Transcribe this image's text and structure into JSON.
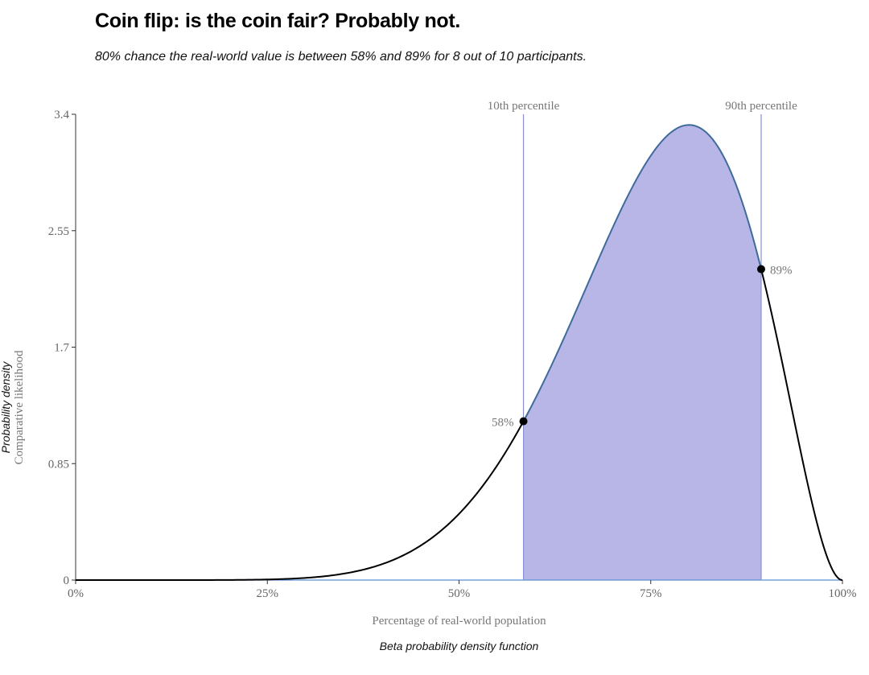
{
  "chart_data": {
    "type": "area",
    "title": "Coin flip: is the coin fair? Probably not.",
    "subtitle": "80% chance the real-world value is between 58% and 89% for 8 out of 10 participants.",
    "distribution": "beta",
    "alpha": 9,
    "beta": 3,
    "xlabel": "Percentage of real-world population",
    "ylabel": "Comparative likelihood",
    "ylabel_secondary": "Probability density",
    "caption": "Beta probability density function",
    "xlim": [
      0,
      1
    ],
    "ylim": [
      0,
      3.4
    ],
    "x_ticks": [
      0,
      0.25,
      0.5,
      0.75,
      1
    ],
    "x_tick_labels": [
      "0%",
      "25%",
      "50%",
      "75%",
      "100%"
    ],
    "y_ticks": [
      0,
      0.85,
      1.7,
      2.55,
      3.4
    ],
    "y_tick_labels": [
      "0",
      "0.85",
      "1.7",
      "2.55",
      "3.4"
    ],
    "interval": {
      "lower": {
        "x": 0.584,
        "y": 1.17,
        "label": "58%",
        "line_label": "10th percentile"
      },
      "upper": {
        "x": 0.894,
        "y": 2.25,
        "label": "89%",
        "line_label": "90th percentile"
      }
    },
    "peak": {
      "x": 0.8,
      "y": 3.32
    },
    "x": [
      0,
      0.05,
      0.1,
      0.15,
      0.2,
      0.25,
      0.3,
      0.35,
      0.4,
      0.45,
      0.5,
      0.55,
      0.584,
      0.6,
      0.65,
      0.7,
      0.75,
      0.8,
      0.85,
      0.894,
      0.9,
      0.95,
      1.0
    ],
    "y": [
      0,
      0.0,
      0.0,
      0.0,
      0.003,
      0.012,
      0.036,
      0.088,
      0.181,
      0.335,
      0.537,
      0.843,
      1.17,
      1.296,
      1.756,
      2.45,
      3.002,
      3.322,
      3.045,
      2.25,
      2.153,
      0.828,
      0
    ],
    "grid": false,
    "colors": {
      "fill": "#b7b6e7",
      "curve": "#000000",
      "curve_in_interval": "#3f6b9c",
      "percentile_line": "#8a8fd0",
      "baseline": "#5b8fd6",
      "axis_text": "#777777",
      "point": "#000000"
    }
  }
}
